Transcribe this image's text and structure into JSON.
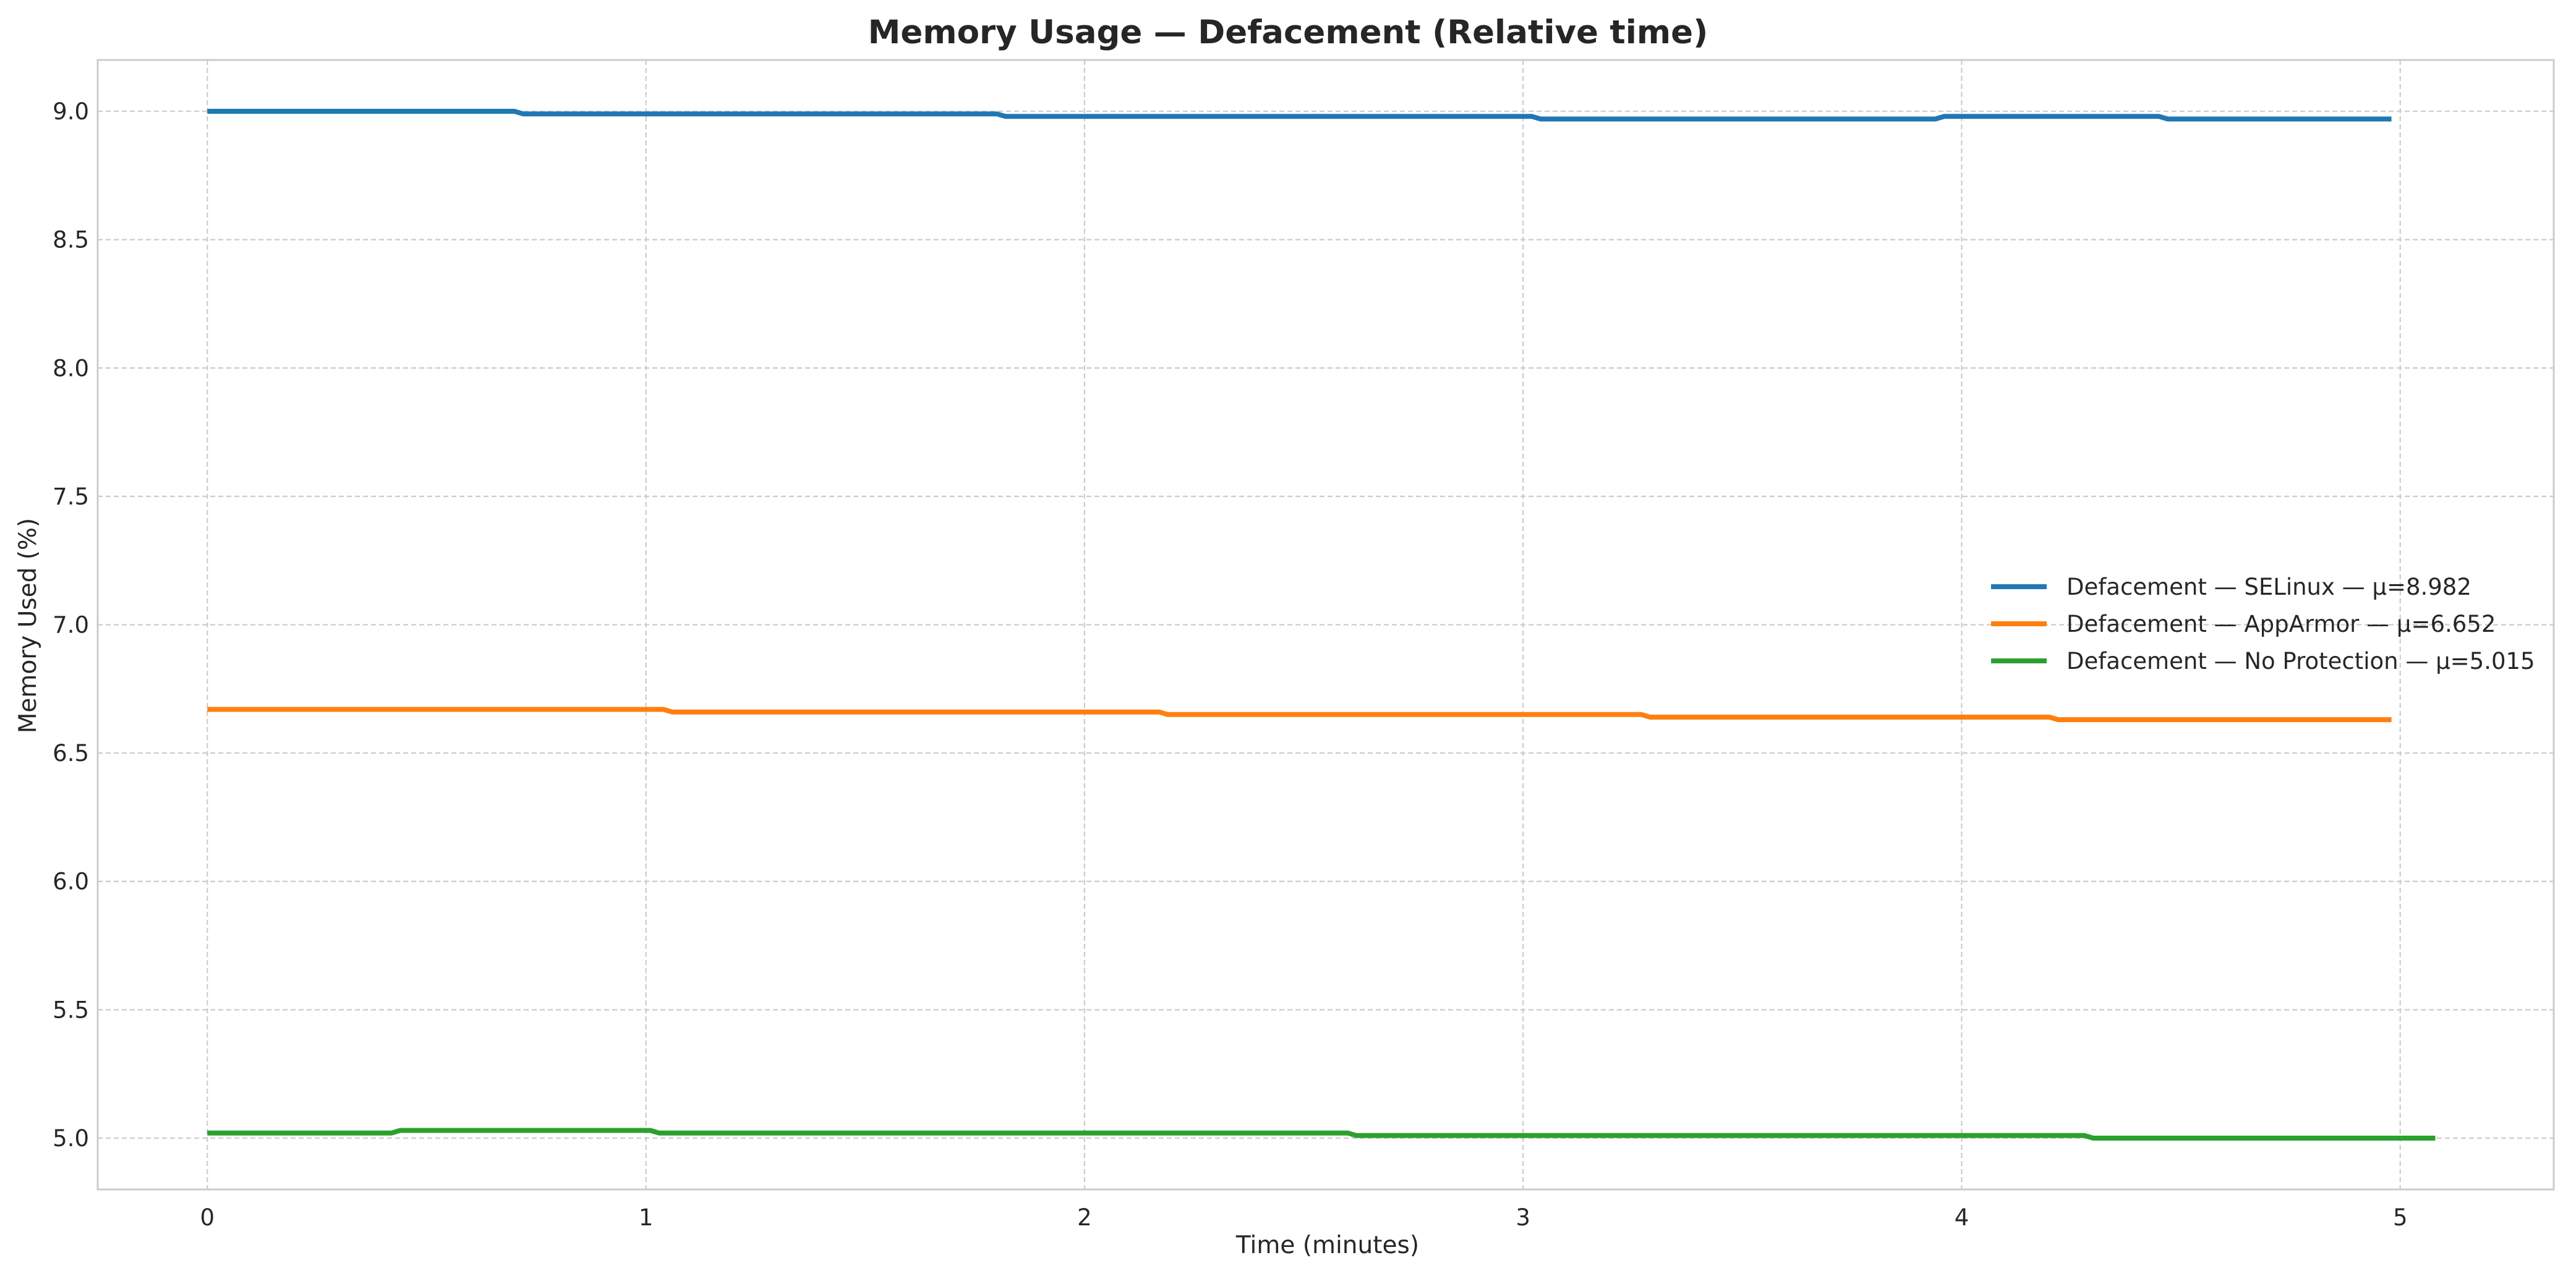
{
  "chart_data": {
    "type": "line",
    "title": "Memory Usage — Defacement (Relative time)",
    "xlabel": "Time (minutes)",
    "ylabel": "Memory Used (%)",
    "xlim": [
      -0.25,
      5.35
    ],
    "ylim": [
      4.8,
      9.2
    ],
    "x_ticks": [
      0,
      1,
      2,
      3,
      4,
      5
    ],
    "x_tick_labels": [
      "0",
      "1",
      "2",
      "3",
      "4",
      "5"
    ],
    "y_ticks": [
      5.0,
      5.5,
      6.0,
      6.5,
      7.0,
      7.5,
      8.0,
      8.5,
      9.0
    ],
    "y_tick_labels": [
      "5.0",
      "5.5",
      "6.0",
      "6.5",
      "7.0",
      "7.5",
      "8.0",
      "8.5",
      "9.0"
    ],
    "grid": true,
    "legend_position": "center-right",
    "series": [
      {
        "name": "Defacement — SELinux — μ=8.982",
        "color": "#1f77b4",
        "points": [
          [
            0,
            9.0
          ],
          [
            0.7,
            9.0
          ],
          [
            0.72,
            8.99
          ],
          [
            1.8,
            8.99
          ],
          [
            1.82,
            8.98
          ],
          [
            3.02,
            8.98
          ],
          [
            3.04,
            8.97
          ],
          [
            3.94,
            8.97
          ],
          [
            3.96,
            8.98
          ],
          [
            4.45,
            8.98
          ],
          [
            4.47,
            8.97
          ],
          [
            4.98,
            8.97
          ]
        ]
      },
      {
        "name": "Defacement — AppArmor — μ=6.652",
        "color": "#ff7f0e",
        "points": [
          [
            0,
            6.67
          ],
          [
            1.04,
            6.67
          ],
          [
            1.06,
            6.66
          ],
          [
            2.17,
            6.66
          ],
          [
            2.19,
            6.65
          ],
          [
            3.27,
            6.65
          ],
          [
            3.29,
            6.64
          ],
          [
            4.2,
            6.64
          ],
          [
            4.22,
            6.63
          ],
          [
            4.98,
            6.63
          ]
        ]
      },
      {
        "name": "Defacement — No Protection — μ=5.015",
        "color": "#2ca02c",
        "points": [
          [
            0,
            5.02
          ],
          [
            0.42,
            5.02
          ],
          [
            0.44,
            5.03
          ],
          [
            1.01,
            5.03
          ],
          [
            1.03,
            5.02
          ],
          [
            2.6,
            5.02
          ],
          [
            2.62,
            5.01
          ],
          [
            4.28,
            5.01
          ],
          [
            4.3,
            5.0
          ],
          [
            5.08,
            5.0
          ]
        ]
      }
    ]
  }
}
